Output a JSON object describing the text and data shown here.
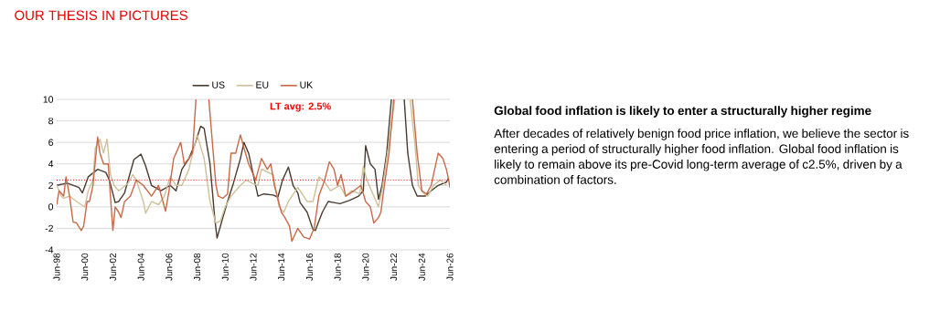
{
  "chart_data": [
    {
      "type": "line",
      "title": "OUR THESIS IN PICTURES",
      "xlim": [
        "1998-06",
        "2026-06"
      ],
      "ylim": [
        -4,
        10
      ],
      "xticks": [
        {
          "value": "1998-06",
          "label": "Jun-98"
        },
        {
          "value": "2000-06",
          "label": "Jun-00"
        },
        {
          "value": "2002-06",
          "label": "Jun-02"
        },
        {
          "value": "2004-06",
          "label": "Jun-04"
        },
        {
          "value": "2006-06",
          "label": "Jun-06"
        },
        {
          "value": "2008-06",
          "label": "Jun-08"
        },
        {
          "value": "2010-06",
          "label": "Jun-10"
        },
        {
          "value": "2012-06",
          "label": "Jun-12"
        },
        {
          "value": "2014-06",
          "label": "Jun-14"
        },
        {
          "value": "2016-06",
          "label": "Jun-16"
        },
        {
          "value": "2018-06",
          "label": "Jun-18"
        },
        {
          "value": "2020-06",
          "label": "Jun-20"
        },
        {
          "value": "2022-06",
          "label": "Jun-22"
        },
        {
          "value": "2024-06",
          "label": "Jun-24"
        },
        {
          "value": "2026-06",
          "label": "Jun-26"
        }
      ],
      "yticks": [
        -4,
        -2,
        0,
        2,
        4,
        6,
        8,
        10
      ],
      "grid": "y",
      "legend": "top",
      "marker": "none",
      "line_style": "solid",
      "ref_lines": [
        {
          "axis": "y",
          "value": 2.5,
          "label": "LT avg: 2.5%",
          "color": "#ff0000",
          "line_style": "dotted"
        }
      ],
      "series": [
        {
          "name": "US",
          "color": "#4a3b30",
          "x": [
            "1998-06",
            "1999-03",
            "2000-01",
            "2000-04",
            "2000-09",
            "2001-05",
            "2001-12",
            "2002-03",
            "2002-08",
            "2002-11",
            "2003-04",
            "2003-12",
            "2004-06",
            "2004-10",
            "2005-03",
            "2005-11",
            "2006-07",
            "2006-12",
            "2007-05",
            "2007-11",
            "2008-04",
            "2008-09",
            "2008-12",
            "2009-05",
            "2009-09",
            "2009-11",
            "2010-04",
            "2010-08",
            "2011-01",
            "2011-07",
            "2011-10",
            "2012-02",
            "2012-08",
            "2012-10",
            "2013-03",
            "2013-11",
            "2014-03",
            "2014-07",
            "2014-12",
            "2015-04",
            "2015-08",
            "2015-10",
            "2016-04",
            "2016-09",
            "2016-11",
            "2017-05",
            "2017-10",
            "2018-03",
            "2018-08",
            "2019-04",
            "2019-12",
            "2020-04",
            "2020-06",
            "2020-10",
            "2021-02",
            "2021-05",
            "2021-08",
            "2021-12",
            "2022-04",
            "2022-10",
            "2023-03",
            "2023-06",
            "2023-10",
            "2024-02",
            "2024-09",
            "2025-02",
            "2025-08",
            "2026-03",
            "2026-05"
          ],
          "values": [
            2.0,
            2.2,
            1.8,
            1.3,
            2.8,
            3.5,
            3.2,
            2.5,
            0.4,
            0.5,
            1.3,
            4.4,
            4.9,
            3.8,
            2.0,
            1.5,
            2.0,
            1.5,
            3.5,
            4.5,
            5.8,
            7.5,
            7.3,
            4.0,
            -1.0,
            -2.9,
            -1.0,
            0.5,
            2.2,
            4.5,
            6.0,
            5.0,
            2.0,
            1.0,
            1.2,
            1.1,
            0.9,
            2.5,
            3.7,
            2.0,
            1.3,
            0.4,
            -0.5,
            -2.1,
            -2.2,
            -0.5,
            0.5,
            0.4,
            0.3,
            0.6,
            1.0,
            1.5,
            5.7,
            4.0,
            3.5,
            0.7,
            2.0,
            5.0,
            10,
            null,
            10,
            5.0,
            2.0,
            1.0,
            1.0,
            1.5,
            2.0,
            2.3,
            2.7
          ]
        },
        {
          "name": "EU",
          "color": "#cfc09a",
          "x": [
            "1998-06",
            "1998-10",
            "1998-12",
            "1999-05",
            "1999-11",
            "2000-03",
            "2000-06",
            "2000-09",
            "2001-01",
            "2001-03",
            "2001-07",
            "2001-10",
            "2002-01",
            "2002-04",
            "2002-07",
            "2002-11",
            "2003-07",
            "2003-11",
            "2004-02",
            "2004-08",
            "2004-10",
            "2005-03",
            "2005-09",
            "2006-02",
            "2006-07",
            "2006-12",
            "2007-05",
            "2007-11",
            "2008-06",
            "2008-12",
            "2009-05",
            "2009-10",
            "2010-02",
            "2010-06",
            "2010-11",
            "2011-07",
            "2011-12",
            "2012-05",
            "2012-10",
            "2013-01",
            "2013-11",
            "2014-04",
            "2014-08",
            "2014-12",
            "2015-08",
            "2015-10",
            "2016-04",
            "2016-09",
            "2017-02",
            "2017-07",
            "2017-12",
            "2018-08",
            "2019-01",
            "2019-06",
            "2020-01",
            "2020-04",
            "2020-07",
            "2021-01",
            "2021-05",
            "2021-08",
            "2022-02",
            "2022-07",
            "2023-01",
            "2023-08",
            "2023-12",
            "2024-03",
            "2024-07",
            "2024-11",
            "2025-04",
            "2025-10",
            "2026-03"
          ],
          "values": [
            2.0,
            1.0,
            0.8,
            1.0,
            0.5,
            0.2,
            0.0,
            1.5,
            2.5,
            5.5,
            6.3,
            5.0,
            6.3,
            3.0,
            2.0,
            1.5,
            2.2,
            3.0,
            2.5,
            0.5,
            -0.6,
            0.5,
            0.2,
            1.0,
            2.8,
            2.0,
            2.0,
            3.5,
            6.7,
            4.5,
            0.5,
            -1.5,
            -1.3,
            0.0,
            1.0,
            2.0,
            2.5,
            2.2,
            2.0,
            3.5,
            3.0,
            0.0,
            -0.5,
            0.5,
            1.8,
            1.5,
            0.5,
            0.5,
            2.8,
            2.3,
            1.5,
            2.0,
            1.0,
            1.5,
            1.2,
            3.8,
            2.5,
            1.0,
            0.0,
            1.5,
            6.0,
            10,
            null,
            10,
            6.0,
            2.0,
            1.3,
            1.0,
            2.0,
            2.5,
            2.0
          ]
        },
        {
          "name": "UK",
          "color": "#c8694a",
          "x": [
            "1998-06",
            "1998-08",
            "1998-12",
            "1999-02",
            "1999-05",
            "1999-08",
            "1999-11",
            "2000-03",
            "2000-05",
            "2000-08",
            "2000-10",
            "2001-01",
            "2001-05",
            "2001-07",
            "2001-10",
            "2002-02",
            "2002-06",
            "2002-08",
            "2002-11",
            "2003-01",
            "2003-04",
            "2003-09",
            "2004-02",
            "2004-08",
            "2005-03",
            "2005-09",
            "2006-03",
            "2006-06",
            "2006-10",
            "2007-04",
            "2007-07",
            "2007-11",
            "2008-02",
            "2008-05",
            "2008-11",
            "2009-04",
            "2009-10",
            "2009-12",
            "2010-04",
            "2010-08",
            "2010-11",
            "2011-03",
            "2011-07",
            "2011-10",
            "2012-02",
            "2012-08",
            "2013-01",
            "2013-06",
            "2013-09",
            "2013-12",
            "2014-06",
            "2014-09",
            "2015-01",
            "2015-03",
            "2015-08",
            "2016-01",
            "2016-06",
            "2016-10",
            "2017-02",
            "2017-07",
            "2017-11",
            "2018-03",
            "2018-06",
            "2018-09",
            "2019-01",
            "2019-08",
            "2020-02",
            "2020-06",
            "2020-10",
            "2021-01",
            "2021-05",
            "2021-07",
            "2021-10",
            "2022-02",
            "2022-06",
            "2023-02",
            "2023-10",
            "2024-02",
            "2024-06",
            "2024-10",
            "2025-02",
            "2025-05",
            "2025-08",
            "2025-12",
            "2026-03",
            "2026-05",
            "2026-06"
          ],
          "values": [
            0.2,
            1.5,
            1.0,
            2.8,
            1.0,
            -1.4,
            -1.5,
            -2.2,
            -1.8,
            0.5,
            0.5,
            2.0,
            6.5,
            5.0,
            4.0,
            4.0,
            -2.2,
            0.0,
            -0.5,
            -1.0,
            0.5,
            1.0,
            2.5,
            2.0,
            1.0,
            2.0,
            -0.4,
            1.5,
            4.5,
            6.0,
            4.0,
            4.5,
            5.0,
            10,
            null,
            10,
            2.1,
            1.0,
            0.8,
            1.2,
            5.0,
            5.0,
            6.7,
            5.5,
            4.0,
            2.5,
            4.5,
            3.5,
            4.0,
            2.0,
            -0.5,
            -1.0,
            -1.8,
            -3.2,
            -2.0,
            -2.8,
            -3.0,
            -2.0,
            1.0,
            2.5,
            4.2,
            3.5,
            2.0,
            3.0,
            1.0,
            1.5,
            2.0,
            0.5,
            0.0,
            -1.5,
            -1.0,
            -0.5,
            2.0,
            5.0,
            10,
            null,
            10,
            5.0,
            1.5,
            1.2,
            2.0,
            3.5,
            5.0,
            4.5,
            3.5,
            2.5,
            1.8
          ]
        }
      ]
    },
    {
      "type": "other",
      "title": "Global food inflation is likely to enter a structurally higher regime",
      "annotations": [
        "After decades of relatively benign food price inflation, we believe the sector is entering a period of structurally higher food inflation. Global food inflation is likely to remain above its pre-Covid long-term average of c2.5%, driven by a combination of factors."
      ]
    }
  ]
}
